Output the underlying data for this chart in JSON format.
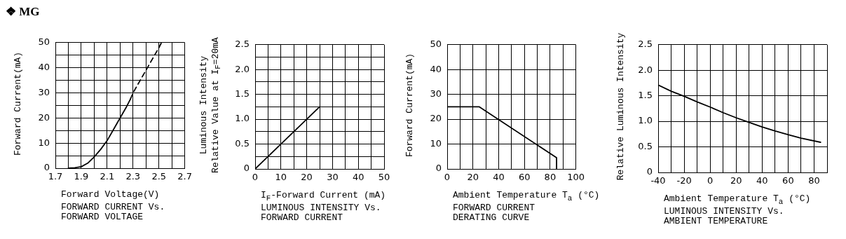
{
  "chart_data": [
    {
      "type": "other",
      "title": "❖ MG"
    },
    {
      "type": "line",
      "xlabel": "Forward Voltage(V)",
      "ylabel": "Forward Current(mA)",
      "annotations": [
        "FORWARD CURRENT Vs.",
        "FORWARD VOLTAGE"
      ],
      "grid": true,
      "legend": false,
      "marker": "none",
      "xlim": [
        1.7,
        2.7
      ],
      "xticks": [
        1.7,
        {
          "value": 1.8,
          "label": null
        },
        1.9,
        {
          "value": 2.0,
          "label": null
        },
        2.1,
        {
          "value": 2.2,
          "label": null
        },
        2.3,
        {
          "value": 2.4,
          "label": null
        },
        2.5,
        {
          "value": 2.6,
          "label": null
        },
        2.7
      ],
      "ylim": [
        0,
        50
      ],
      "yticks": [
        0,
        {
          "value": 5,
          "label": null
        },
        10,
        {
          "value": 15,
          "label": null
        },
        20,
        {
          "value": 25,
          "label": null
        },
        30,
        {
          "value": 35,
          "label": null
        },
        40,
        {
          "value": 45,
          "label": null
        },
        50
      ],
      "series": [
        {
          "color": "#000000",
          "line_style": "solid",
          "x": [
            1.8,
            1.85,
            1.9,
            1.95,
            2.0,
            2.05,
            2.1,
            2.15,
            2.2,
            2.25,
            2.28
          ],
          "values": [
            0,
            0.2,
            0.6,
            2,
            4.5,
            7.5,
            11,
            15.5,
            20,
            24.5,
            27.5
          ]
        },
        {
          "color": "#000000",
          "line_style": "dashed",
          "x": [
            2.28,
            2.3,
            2.35,
            2.4,
            2.45,
            2.5,
            2.52
          ],
          "values": [
            27.5,
            30,
            34.5,
            39,
            43.5,
            48,
            50
          ]
        }
      ]
    },
    {
      "type": "line",
      "xlabel": "I$_{F}$-Forward Current (mA)",
      "ylabel": "Luminous Intensity\nRelative Value at I$_{F}$=20mA",
      "annotations": [
        "LUMINOUS INTENSITY Vs.",
        "FORWARD CURRENT"
      ],
      "grid": true,
      "legend": false,
      "marker": "none",
      "line_style": "solid",
      "xlim": [
        0,
        50
      ],
      "xticks": [
        0,
        {
          "value": 5,
          "label": null
        },
        10,
        {
          "value": 15,
          "label": null
        },
        20,
        {
          "value": 25,
          "label": null
        },
        30,
        {
          "value": 35,
          "label": null
        },
        40,
        {
          "value": 45,
          "label": null
        },
        50
      ],
      "ylim": [
        0,
        2.5
      ],
      "yticks": [
        0,
        {
          "value": 0.25,
          "label": null
        },
        0.5,
        {
          "value": 0.75,
          "label": null
        },
        {
          "value": 1,
          "label": "1.0"
        },
        {
          "value": 1.25,
          "label": null
        },
        1.5,
        {
          "value": 1.75,
          "label": null
        },
        {
          "value": 2,
          "label": "2.0"
        },
        {
          "value": 2.25,
          "label": null
        },
        2.5
      ],
      "series": [
        {
          "color": "#000000",
          "x": [
            0,
            25
          ],
          "values": [
            0,
            1.25
          ]
        }
      ]
    },
    {
      "type": "line",
      "xlabel": "Ambient Temperature T$_{a}$ (°C)",
      "ylabel": "Forward Current(mA)",
      "annotations": [
        "FORWARD CURRENT",
        "DERATING CURVE"
      ],
      "grid": true,
      "legend": false,
      "marker": "none",
      "line_style": "solid",
      "xlim": [
        0,
        100
      ],
      "xticks": [
        0,
        {
          "value": 10,
          "label": null
        },
        20,
        {
          "value": 30,
          "label": null
        },
        40,
        {
          "value": 50,
          "label": null
        },
        60,
        {
          "value": 70,
          "label": null
        },
        80,
        {
          "value": 90,
          "label": null
        },
        100
      ],
      "ylim": [
        0,
        50
      ],
      "yticks": [
        0,
        10,
        20,
        30,
        40,
        50
      ],
      "series": [
        {
          "color": "#000000",
          "x": [
            0,
            25,
            85,
            85
          ],
          "values": [
            25,
            25,
            4.5,
            0
          ]
        }
      ]
    },
    {
      "type": "line",
      "xlabel": "Ambient Temperature T$_{a}$ (°C)",
      "ylabel": "Relative Luminous Intensity",
      "annotations": [
        "LUMINOUS INTENSITY Vs.",
        "AMBIENT TEMPERATURE"
      ],
      "grid": true,
      "legend": false,
      "marker": "none",
      "line_style": "solid",
      "xlim": [
        -40,
        90
      ],
      "xticks": [
        -40,
        {
          "value": -30,
          "label": null
        },
        -20,
        {
          "value": -10,
          "label": null
        },
        0,
        {
          "value": 10,
          "label": null
        },
        20,
        {
          "value": 30,
          "label": null
        },
        40,
        {
          "value": 50,
          "label": null
        },
        60,
        {
          "value": 70,
          "label": null
        },
        80,
        {
          "value": 90,
          "label": null
        }
      ],
      "ylim": [
        0,
        2.5
      ],
      "yticks": [
        0,
        0.5,
        {
          "value": 1,
          "label": "1.0"
        },
        1.5,
        {
          "value": 2,
          "label": "2.0"
        },
        2.5
      ],
      "series": [
        {
          "color": "#000000",
          "x": [
            -40,
            -30,
            -20,
            -10,
            0,
            10,
            20,
            30,
            40,
            50,
            60,
            70,
            85
          ],
          "values": [
            1.71,
            1.59,
            1.49,
            1.38,
            1.28,
            1.17,
            1.07,
            0.98,
            0.89,
            0.81,
            0.74,
            0.67,
            0.59
          ]
        }
      ]
    }
  ]
}
